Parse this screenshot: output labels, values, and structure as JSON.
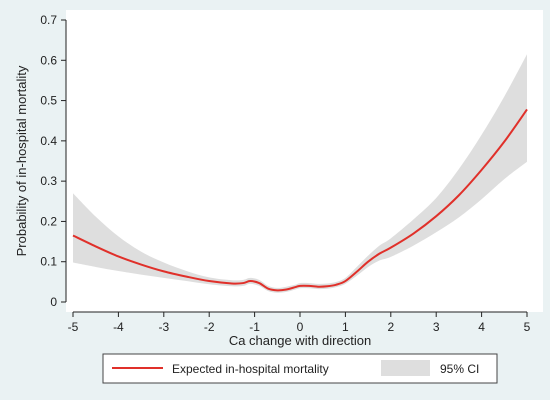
{
  "chart_data": {
    "type": "line",
    "xlabel": "Ca change with direction",
    "ylabel": "Probability of in-hospital mortality",
    "xlim": [
      -5,
      5
    ],
    "ylim": [
      0,
      0.7
    ],
    "xticks": [
      -5,
      -4,
      -3,
      -2,
      -1,
      0,
      1,
      2,
      3,
      4,
      5
    ],
    "yticks": [
      0,
      0.1,
      0.2,
      0.3,
      0.4,
      0.5,
      0.6,
      0.7
    ],
    "grid": false,
    "legend_position": "bottom",
    "series": [
      {
        "name": "Expected in-hospital mortality",
        "color": "#e0302a",
        "x": [
          -5,
          -4.5,
          -4,
          -3.5,
          -3,
          -2.5,
          -2,
          -1.5,
          -1.25,
          -1.1,
          -0.9,
          -0.7,
          -0.5,
          -0.3,
          -0.1,
          0,
          0.2,
          0.4,
          0.6,
          0.8,
          1,
          1.25,
          1.5,
          1.75,
          2,
          2.5,
          3,
          3.5,
          4,
          4.5,
          5
        ],
        "y": [
          0.165,
          0.138,
          0.113,
          0.093,
          0.076,
          0.063,
          0.052,
          0.046,
          0.047,
          0.052,
          0.047,
          0.033,
          0.029,
          0.031,
          0.037,
          0.04,
          0.04,
          0.038,
          0.039,
          0.043,
          0.052,
          0.075,
          0.1,
          0.12,
          0.135,
          0.17,
          0.213,
          0.265,
          0.328,
          0.398,
          0.478
        ]
      }
    ],
    "ci": {
      "name": "95% CI",
      "color": "#d9d9d9",
      "x": [
        -5,
        -4.5,
        -4,
        -3.5,
        -3,
        -2.5,
        -2,
        -1.5,
        -1.25,
        -1.1,
        -0.9,
        -0.7,
        -0.5,
        -0.3,
        -0.1,
        0,
        0.2,
        0.4,
        0.6,
        0.8,
        1,
        1.25,
        1.5,
        1.75,
        2,
        2.5,
        3,
        3.5,
        4,
        4.5,
        5
      ],
      "lower": [
        0.098,
        0.087,
        0.077,
        0.068,
        0.06,
        0.052,
        0.044,
        0.039,
        0.04,
        0.045,
        0.04,
        0.027,
        0.023,
        0.025,
        0.031,
        0.034,
        0.034,
        0.032,
        0.033,
        0.037,
        0.045,
        0.065,
        0.087,
        0.103,
        0.112,
        0.14,
        0.173,
        0.21,
        0.255,
        0.305,
        0.348
      ],
      "upper": [
        0.27,
        0.212,
        0.163,
        0.125,
        0.098,
        0.077,
        0.061,
        0.054,
        0.055,
        0.06,
        0.055,
        0.04,
        0.035,
        0.038,
        0.043,
        0.047,
        0.047,
        0.045,
        0.046,
        0.05,
        0.06,
        0.087,
        0.115,
        0.14,
        0.158,
        0.205,
        0.258,
        0.33,
        0.415,
        0.51,
        0.615
      ]
    }
  }
}
